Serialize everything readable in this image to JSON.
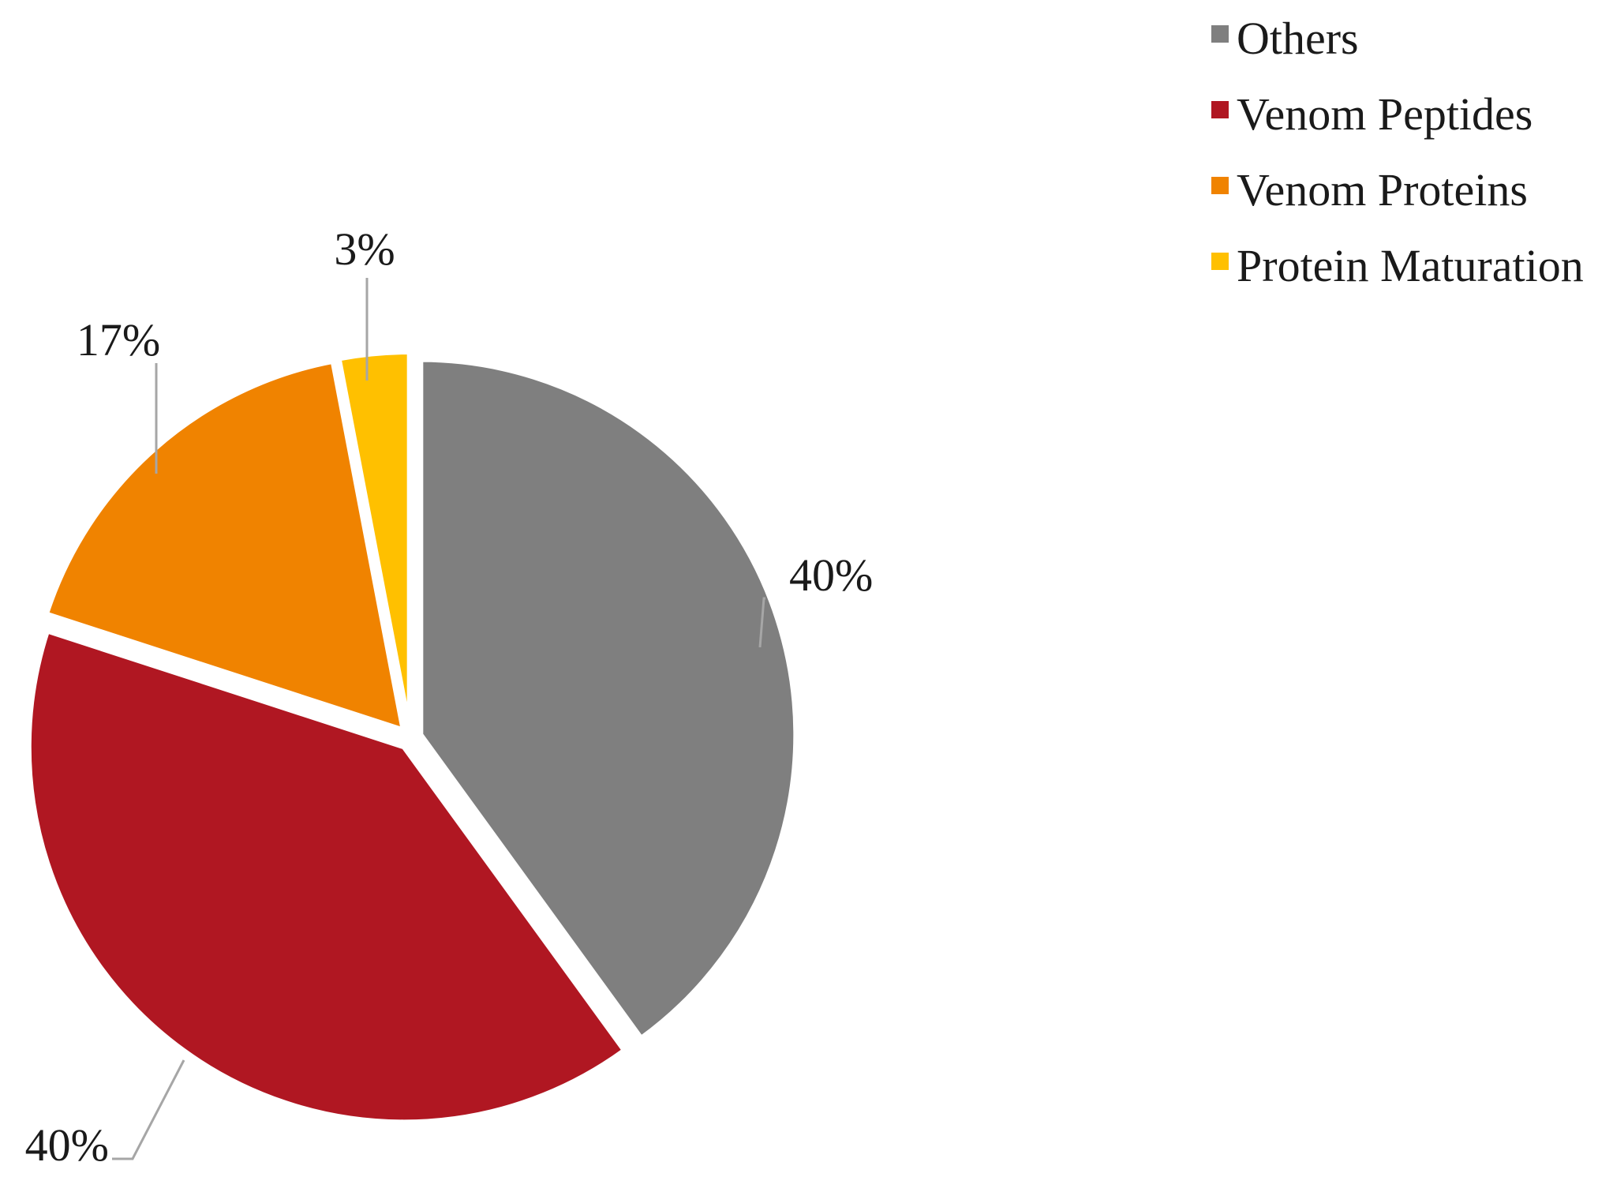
{
  "chart_data": {
    "type": "pie",
    "title": "",
    "slices": [
      {
        "label": "Others",
        "value": 40,
        "display": "40%",
        "color": "#7f7f7f"
      },
      {
        "label": "Venom Peptides",
        "value": 40,
        "display": "40%",
        "color": "#b01722"
      },
      {
        "label": "Venom Proteins",
        "value": 17,
        "display": "17%",
        "color": "#f08300"
      },
      {
        "label": "Protein Maturation",
        "value": 3,
        "display": "3%",
        "color": "#ffc000"
      }
    ],
    "legend_position": "top-right",
    "exploded": true
  }
}
